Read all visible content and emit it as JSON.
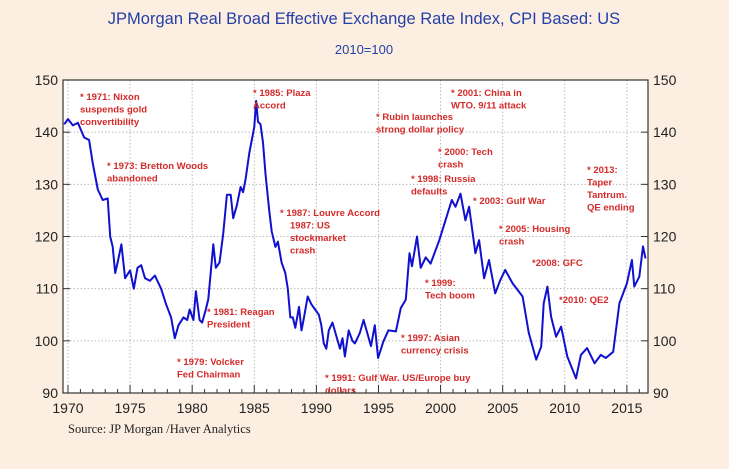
{
  "chart_data": {
    "type": "line",
    "title": "JPMorgan Real Broad Effective Exchange Rate Index, CPI Based: US",
    "subtitle": "2010=100",
    "source": "Source:  JP Morgan /Haver Analytics",
    "xlim": [
      1969.6,
      2016.7
    ],
    "ylim": [
      90,
      150
    ],
    "xticks": [
      1970,
      1975,
      1980,
      1985,
      1990,
      1995,
      2000,
      2005,
      2010,
      2015
    ],
    "yticks": [
      90,
      100,
      110,
      120,
      130,
      140,
      150
    ],
    "grid": true,
    "line_color": "#1010d0",
    "annotation_color": "#d42a2a",
    "series": [
      {
        "x": [
          1969.7,
          1970.0,
          1970.4,
          1970.8,
          1971.3,
          1971.7,
          1972.0,
          1972.4,
          1972.8,
          1973.2,
          1973.4,
          1973.6,
          1973.8,
          1974.0,
          1974.3,
          1974.6,
          1975.0,
          1975.3,
          1975.6,
          1975.9,
          1976.2,
          1976.6,
          1977.0,
          1977.5,
          1977.9,
          1978.3,
          1978.6,
          1978.9,
          1979.3,
          1979.6,
          1979.8,
          1980.1,
          1980.3,
          1980.6,
          1980.8,
          1981.1,
          1981.3,
          1981.7,
          1981.9,
          1982.2,
          1982.5,
          1982.8,
          1983.1,
          1983.3,
          1983.6,
          1983.9,
          1984.1,
          1984.3,
          1984.6,
          1984.8,
          1985.0,
          1985.15,
          1985.3,
          1985.5,
          1985.7,
          1985.9,
          1986.2,
          1986.4,
          1986.7,
          1986.9,
          1987.2,
          1987.5,
          1987.7,
          1987.9,
          1988.1,
          1988.3,
          1988.6,
          1988.8,
          1989.0,
          1989.3,
          1989.6,
          1989.9,
          1990.2,
          1990.4,
          1990.6,
          1990.8,
          1991.0,
          1991.3,
          1991.6,
          1991.9,
          1992.1,
          1992.3,
          1992.6,
          1992.9,
          1993.1,
          1993.5,
          1993.8,
          1994.4,
          1994.7,
          1994.97,
          1995.4,
          1995.8,
          1996.4,
          1996.8,
          1997.2,
          1997.5,
          1997.7,
          1998.1,
          1998.4,
          1998.8,
          1999.2,
          1999.9,
          2000.4,
          2000.9,
          2001.2,
          2001.6,
          2002.0,
          2002.3,
          2002.8,
          2003.1,
          2003.5,
          2003.9,
          2004.4,
          2004.8,
          2005.2,
          2005.8,
          2006.6,
          2007.1,
          2007.7,
          2008.1,
          2008.3,
          2008.6,
          2008.9,
          2009.3,
          2009.7,
          2010.2,
          2010.9,
          2011.3,
          2011.8,
          2012.4,
          2012.9,
          2013.3,
          2013.9,
          2014.4,
          2015.0,
          2015.4,
          2015.6,
          2016.0,
          2016.3,
          2016.5
        ],
        "y": [
          141.5,
          142.5,
          141.3,
          141.8,
          139,
          138.5,
          134,
          129,
          127,
          127.3,
          120,
          118,
          113,
          115,
          118.5,
          112,
          113.5,
          110,
          114,
          114.5,
          112,
          111.5,
          112.5,
          110,
          107,
          104.5,
          100.5,
          103,
          104.5,
          104,
          106,
          104,
          109.5,
          104,
          103.5,
          106,
          108,
          118.5,
          114,
          115,
          120.5,
          128,
          128,
          123.5,
          126,
          129.5,
          128.5,
          131,
          136,
          138.5,
          141,
          146,
          142,
          141.5,
          138,
          132,
          125,
          121,
          118,
          119,
          115,
          113,
          110,
          104.5,
          104.5,
          102.5,
          106.5,
          102,
          104.5,
          108.5,
          107,
          106,
          105,
          103,
          99.5,
          98.5,
          102,
          103.5,
          101,
          98.5,
          100.5,
          97,
          102,
          100,
          99.5,
          101.5,
          104,
          99,
          103,
          96.7,
          99.9,
          102,
          101.8,
          106.3,
          107.9,
          116.8,
          114.3,
          120,
          114,
          116,
          114.8,
          119.3,
          123.1,
          127,
          125.7,
          128.2,
          123.1,
          125.7,
          116.8,
          119.3,
          112,
          115.5,
          109.1,
          111.6,
          113.6,
          111,
          108.5,
          101.5,
          96.4,
          98.9,
          107.2,
          110.4,
          104.6,
          100.8,
          102.7,
          97,
          92.8,
          97.3,
          98.6,
          95.7,
          97.3,
          96.7,
          97.9,
          107.2,
          111,
          115.5,
          110.4,
          112.3,
          118.1,
          115.8
        ]
      }
    ],
    "annotations": [
      [
        "* 1971: Nixon",
        "suspends gold",
        "convertibility"
      ],
      [
        "* 1973: Bretton Woods",
        "abandoned"
      ],
      [
        "* 1985: Plaza",
        "Accord"
      ],
      [
        "* 1987: Louvre Accord",
        "1987: US",
        "stockmarket",
        "crash"
      ],
      [
        "* 1981: Reagan",
        "President"
      ],
      [
        "* 1979: Volcker",
        "Fed Chairman"
      ],
      [
        "* 1991: Gulf War. US/Europe buy",
        "dollars"
      ],
      [
        "* 2001: China in",
        "WTO. 9/11 attack"
      ],
      [
        "* Rubin launches",
        "strong dollar policy"
      ],
      [
        "* 2000: Tech",
        "crash"
      ],
      [
        "* 1998: Russia",
        "defaults"
      ],
      [
        "* 2003: Gulf War"
      ],
      [
        "* 2005: Housing",
        "crash"
      ],
      [
        "*2008: GFC"
      ],
      [
        "*2010: QE2"
      ],
      [
        "* 1999:",
        "Tech boom"
      ],
      [
        "* 1997: Asian",
        "currency crisis"
      ],
      [
        "* 2013:",
        "Taper",
        "Tantrum.",
        "QE ending"
      ]
    ]
  }
}
